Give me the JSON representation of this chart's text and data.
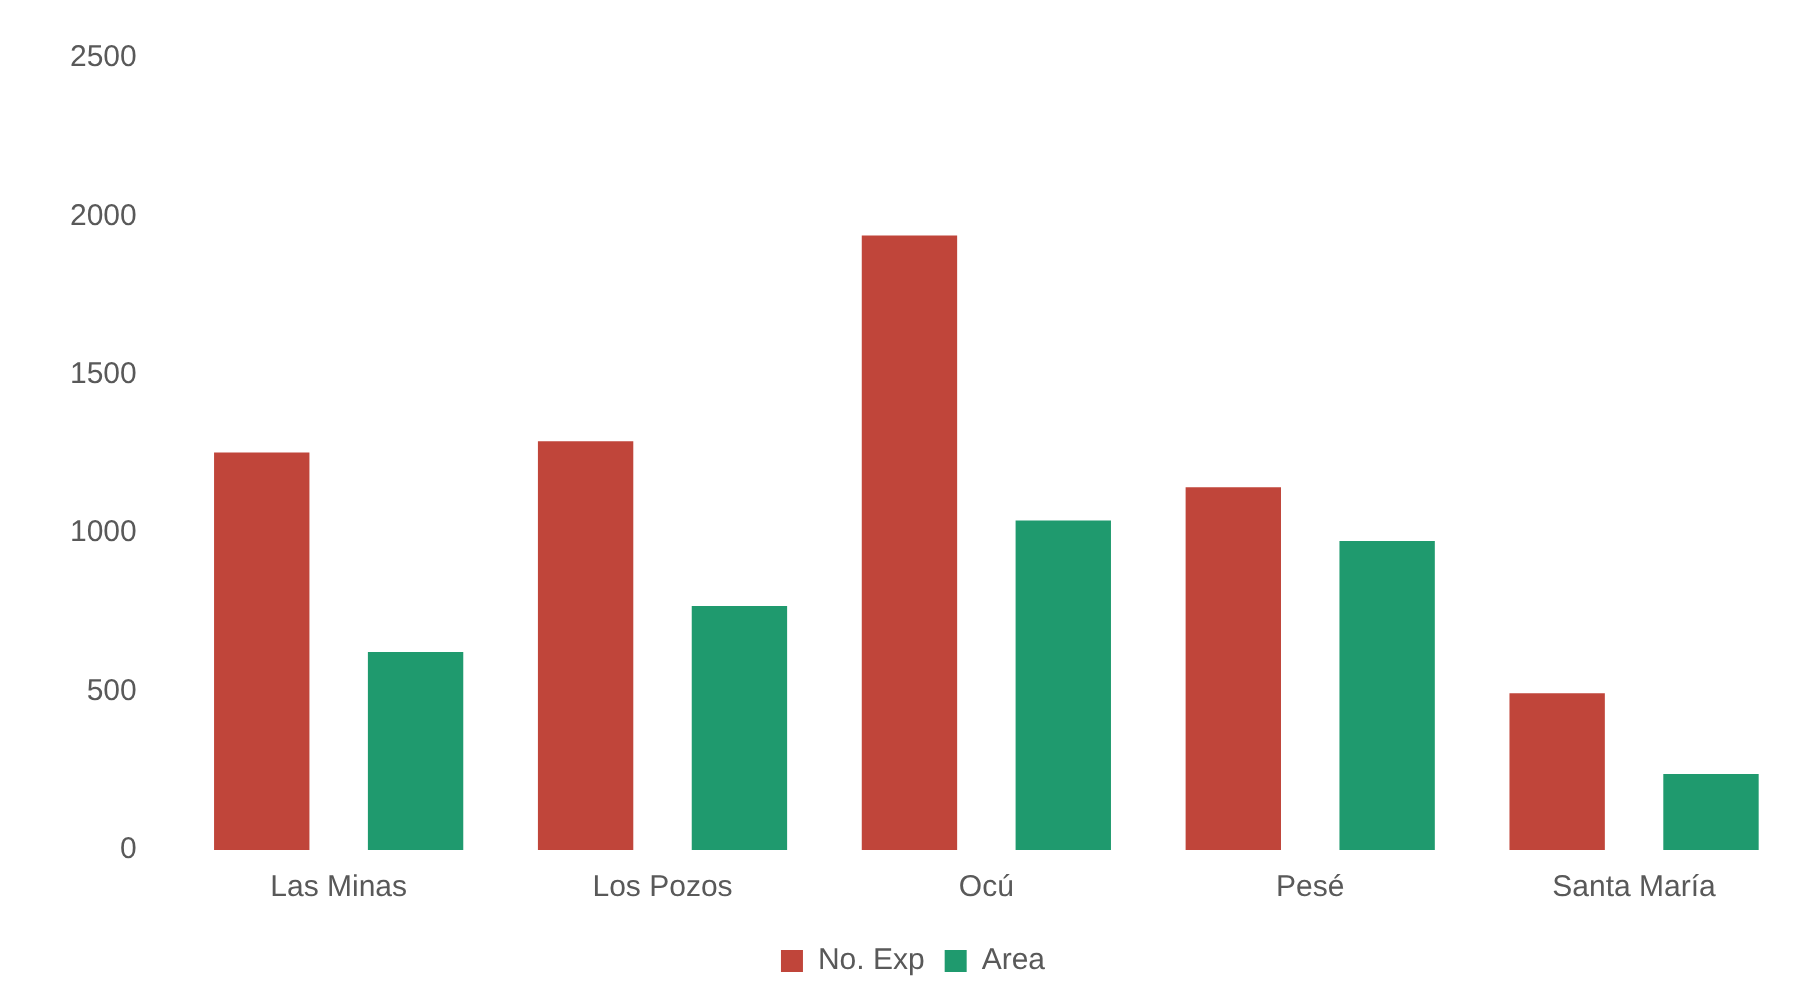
{
  "chart_data": {
    "type": "bar",
    "categories": [
      "Las Minas",
      "Los Pozos",
      "Ocú",
      "Pesé",
      "Santa María"
    ],
    "series": [
      {
        "name": "No. Exp",
        "color": "#c0453a",
        "values": [
          1255,
          1290,
          1940,
          1145,
          495
        ]
      },
      {
        "name": "Area",
        "color": "#1f9a6e",
        "values": [
          625,
          770,
          1040,
          975,
          240
        ]
      }
    ],
    "ylim": [
      0,
      2500
    ],
    "yticks": [
      0,
      500,
      1000,
      1500,
      2000,
      2500
    ],
    "grid": false,
    "legend": "bottom"
  }
}
